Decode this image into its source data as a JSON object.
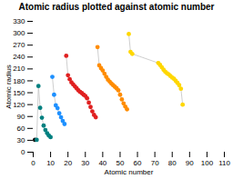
{
  "chart_data": {
    "type": "line",
    "title": "Atomic radius plotted against atomic number",
    "xlabel": "Atomic number",
    "ylabel": "Atomic radius",
    "xlim": [
      0,
      110
    ],
    "ylim": [
      0,
      330
    ],
    "xticks": [
      0,
      10,
      20,
      30,
      40,
      50,
      60,
      70,
      80,
      90,
      100,
      110
    ],
    "yticks": [
      0,
      30,
      60,
      90,
      120,
      150,
      180,
      210,
      240,
      270,
      300,
      330
    ],
    "color": "#c8c8c8",
    "marker": "circle",
    "series": [
      {
        "color": "#000000",
        "x": [
          1
        ],
        "values": [
          31
        ]
      },
      {
        "color": "#008080",
        "x": [
          2,
          3,
          4,
          5,
          6,
          7,
          8,
          9,
          10
        ],
        "values": [
          31,
          167,
          112,
          87,
          67,
          56,
          48,
          42,
          38
        ]
      },
      {
        "color": "#1e90ff",
        "x": [
          11,
          12,
          13,
          14,
          15,
          16,
          17,
          18
        ],
        "values": [
          190,
          145,
          118,
          111,
          98,
          88,
          79,
          71
        ]
      },
      {
        "color": "#e02020",
        "x": [
          19,
          20,
          21,
          22,
          23,
          24,
          25,
          26,
          27,
          28,
          29,
          30,
          31,
          32,
          33,
          34,
          35,
          36
        ],
        "values": [
          243,
          194,
          184,
          176,
          171,
          166,
          161,
          156,
          152,
          149,
          145,
          142,
          136,
          125,
          114,
          103,
          94,
          88
        ]
      },
      {
        "color": "#ff8c00",
        "x": [
          37,
          38,
          39,
          40,
          41,
          42,
          43,
          44,
          45,
          46,
          47,
          48,
          49,
          50,
          51,
          52,
          53,
          54
        ],
        "values": [
          265,
          219,
          212,
          206,
          198,
          190,
          183,
          178,
          173,
          169,
          165,
          161,
          156,
          145,
          133,
          123,
          115,
          108
        ]
      },
      {
        "color": "#ffd700",
        "x": [
          55,
          56,
          57,
          72,
          73,
          74,
          75,
          76,
          77,
          78,
          79,
          80,
          81,
          82,
          83,
          84,
          85,
          86
        ],
        "values": [
          298,
          253,
          248,
          225,
          220,
          214,
          208,
          203,
          199,
          196,
          192,
          188,
          185,
          180,
          175,
          169,
          160,
          120
        ]
      }
    ]
  }
}
